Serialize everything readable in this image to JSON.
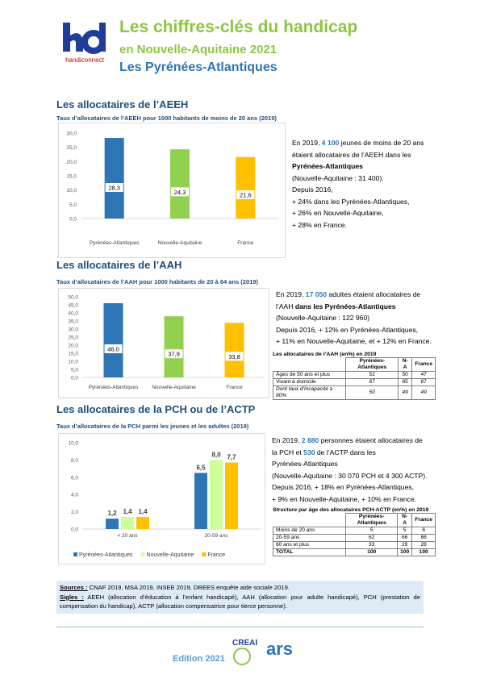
{
  "header": {
    "logo_text": "handiconnect",
    "title": "Les chiffres-clés du handicap",
    "subtitle": "en Nouvelle-Aquitaine 2021",
    "territory": "Les Pyrénées-Atlantiques"
  },
  "sections": [
    {
      "title": "Les allocataires de l’AEEH",
      "subtitle": "Taux d’allocataires de l’AEEH pour 1000 habitants de moins de 20 ans (2019)",
      "chart": {
        "type": "bar",
        "categories": [
          "Pyrénées-Atlantiques",
          "Nouvelle-Aquitaine",
          "France"
        ],
        "values": [
          28.3,
          24.3,
          21.6
        ],
        "value_labels": [
          "28,3",
          "24,3",
          "21,6"
        ],
        "colors": [
          "#2e75b6",
          "#92d050",
          "#ffc000"
        ],
        "ylim": [
          0,
          30
        ],
        "yticks": [
          {
            "value": 0,
            "label": "0,0"
          },
          {
            "value": 5,
            "label": "5,0"
          },
          {
            "value": 10,
            "label": "10,0"
          },
          {
            "value": 15,
            "label": "15,0"
          },
          {
            "value": 20,
            "label": "20,0"
          },
          {
            "value": 25,
            "label": "25,0"
          },
          {
            "value": 30,
            "label": "30,0"
          }
        ],
        "grid": false
      },
      "lines": [
        [
          {
            "text": "En 2019, "
          },
          {
            "text": "4 100",
            "style": "num"
          },
          {
            "text": " jeunes de moins de 20 ans"
          }
        ],
        [
          {
            "text": "étaient allocataires de l’AEEH dans les"
          }
        ],
        [
          {
            "text": "Pyrénées-Atlantiques",
            "style": "bold"
          }
        ],
        [
          {
            "text": "(Nouvelle-Aquitaine : 31 400)."
          }
        ],
        [
          {
            "text": "Depuis 2016,"
          }
        ],
        [
          {
            "text": "+ 24% dans les Pyrénées-Atlantiques,"
          }
        ],
        [
          {
            "text": "+ 26% en Nouvelle-Aquitaine,"
          }
        ],
        [
          {
            "text": "+ 28% en France."
          }
        ]
      ]
    },
    {
      "title": "Les allocataires de l’AAH",
      "subtitle": "Taux d’allocataires de l’AAH pour 1000 habitants de 20 à 64 ans (2019)",
      "chart": {
        "type": "bar",
        "categories": [
          "Pyrénées-Atlantiques",
          "Nouvelle-Aquitaine",
          "France"
        ],
        "values": [
          46.0,
          37.9,
          33.8
        ],
        "value_labels": [
          "46,0",
          "37,9",
          "33,8"
        ],
        "colors": [
          "#2e75b6",
          "#92d050",
          "#ffc000"
        ],
        "ylim": [
          0,
          50
        ],
        "yticks": [
          {
            "value": 0,
            "label": "0,0"
          },
          {
            "value": 5,
            "label": "5,0"
          },
          {
            "value": 10,
            "label": "10,0"
          },
          {
            "value": 15,
            "label": "15,0"
          },
          {
            "value": 20,
            "label": "20,0"
          },
          {
            "value": 25,
            "label": "25,0"
          },
          {
            "value": 30,
            "label": "30,0"
          },
          {
            "value": 35,
            "label": "35,0"
          },
          {
            "value": 40,
            "label": "40,0"
          },
          {
            "value": 45,
            "label": "45,0"
          },
          {
            "value": 50,
            "label": "50,0"
          }
        ],
        "grid": false
      },
      "lines": [
        [
          {
            "text": "En 2019, "
          },
          {
            "text": "17 050",
            "style": "num"
          },
          {
            "text": " adultes étaient allocataires de"
          }
        ],
        [
          {
            "text": "l’AAH "
          },
          {
            "text": "dans les Pyrénées-Atlantiques",
            "style": "bold"
          }
        ],
        [
          {
            "text": "(Nouvelle-Aquitaine : 122 960)"
          }
        ],
        [
          {
            "text": "Depuis 2016, + 12% en Pyrénées-Atlantiques,"
          }
        ],
        [
          {
            "text": "+ 11% en Nouvelle-Aquitaine, et + 12% en France."
          }
        ]
      ],
      "table": {
        "title": "Les allocataires de l’AAH (en%) en 2019",
        "header": [
          null,
          "Pyrénées-Atlantiques",
          "N-A",
          "France"
        ],
        "rows": [
          [
            "Âges de 50 ans et plus",
            52,
            50,
            47
          ],
          [
            "Vivant à domicile",
            87,
            85,
            87
          ],
          [
            "Dont taux d’incapacité ≥ 80%",
            50,
            49,
            49
          ]
        ]
      }
    },
    {
      "title": "Les allocataires de la PCH ou de l’ACTP",
      "subtitle": "Taux d’allocataires de la PCH parmi les jeunes et les adultes (2019)",
      "chart": {
        "type": "grouped-bar",
        "categories": [
          "< 20 ans",
          "20-59 ans"
        ],
        "series": [
          {
            "name": "Pyrénées-Atlantiques",
            "color": "#2e75b6",
            "values": [
              1.2,
              6.5
            ],
            "value_labels": [
              "1,2",
              "6,5"
            ]
          },
          {
            "name": "Nouvelle-Aquitaine",
            "color": "#ccff99",
            "values": [
              1.4,
              8.0
            ],
            "value_labels": [
              "1,4",
              "8,0"
            ]
          },
          {
            "name": "France",
            "color": "#ffc000",
            "values": [
              1.4,
              7.7
            ],
            "value_labels": [
              "1,4",
              "7,7"
            ]
          }
        ],
        "ylim": [
          0,
          10
        ],
        "yticks": [
          {
            "value": 0,
            "label": "0,0"
          },
          {
            "value": 2,
            "label": "2,0"
          },
          {
            "value": 4,
            "label": "4,0"
          },
          {
            "value": 6,
            "label": "6,0"
          },
          {
            "value": 8,
            "label": "8,0"
          },
          {
            "value": 10,
            "label": "10,0"
          }
        ],
        "grid": false,
        "legend": "bottom"
      },
      "lines": [
        [
          {
            "text": "En 2019, "
          },
          {
            "text": "2 880",
            "style": "num"
          },
          {
            "text": " personnes étaient allocataires de"
          }
        ],
        [
          {
            "text": "la PCH et "
          },
          {
            "text": "530",
            "style": "num"
          },
          {
            "text": " de l’ACTP dans les"
          }
        ],
        [
          {
            "text": "Pyrénées-Atlantiques"
          }
        ],
        [
          {
            "text": "(Nouvelle-Aquitaine : 30 070 PCH et 4 300 ACTP)."
          }
        ],
        [
          {
            "text": "Depuis 2016, + 18% en Pyrénées-Atlantiques,"
          }
        ],
        [
          {
            "text": "+ 9% en Nouvelle-Aquitaine, + 10% en France."
          }
        ]
      ],
      "table": {
        "title": "Structure par âge des allocataires PCH-ACTP (en%) en 2019",
        "header": [
          null,
          "Pyrénées-Atlantiques",
          "N-A",
          "France"
        ],
        "rows": [
          [
            "Moins de 20 ans",
            5,
            5,
            6
          ],
          [
            "20-59 ans",
            62,
            66,
            66
          ],
          [
            "60 ans et plus",
            33,
            29,
            28
          ],
          [
            "TOTAL",
            100,
            100,
            100
          ]
        ]
      }
    }
  ],
  "sources": {
    "label": "Sources :",
    "text": " CNAF 2019, MSA 2019, INSEE 2019, DREES enquête aide sociale 2019."
  },
  "acronyms": {
    "label": "Sigles :",
    "text": " AEEH (allocation d’éducation à l’enfant handicapé), AAH (allocation pour adulte handicapé), PCH (prestation de compensation du handicap), ACTP (allocation compensatrice pour tierce personne)."
  },
  "footer": {
    "edition": "Edition 2021",
    "partner_1": "CREAI",
    "partner_2": "ars"
  }
}
